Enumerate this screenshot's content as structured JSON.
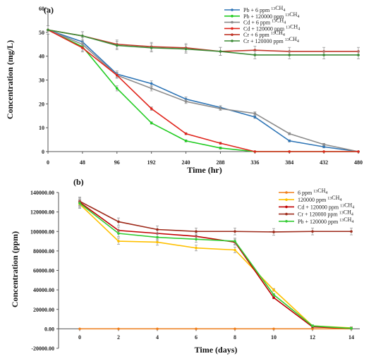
{
  "chart_data": [
    {
      "panel": "(a)",
      "type": "line",
      "xlabel": "Time (hr)",
      "ylabel": "Concentration (mg/L)",
      "x": [
        "0",
        "48",
        "96",
        "192",
        "240",
        "288",
        "336",
        "384",
        "432",
        "480"
      ],
      "yticks": [
        "0",
        "10",
        "20",
        "30",
        "40",
        "50",
        "60"
      ],
      "ylim": [
        0,
        60
      ],
      "grid": false,
      "legend_position": "top-right",
      "series": [
        {
          "name": "Pb + 6 ppm ¹³CH₄",
          "color": "#2e75b6",
          "values": [
            51,
            46,
            32.5,
            28.5,
            22,
            18.5,
            14.5,
            4.5,
            2,
            0
          ]
        },
        {
          "name": "Pb + 120000 ppm ¹³CH₄",
          "color": "#22cc22",
          "values": [
            51,
            44,
            26.5,
            12,
            4.5,
            1.5,
            0,
            0,
            0,
            0
          ]
        },
        {
          "name": "Cd + 6 ppm ¹³CH₄",
          "color": "#8c8c8c",
          "values": [
            51,
            45,
            32,
            26.5,
            21,
            18,
            16,
            7.5,
            3,
            0
          ]
        },
        {
          "name": "Cd + 120000 ppm ¹³CH₄",
          "color": "#e0241b",
          "values": [
            51,
            43.5,
            32,
            18,
            7.5,
            3.5,
            0,
            0,
            0,
            0
          ]
        },
        {
          "name": "Cr + 6 ppm ¹³CH₄",
          "color": "#c0392b",
          "values": [
            51,
            48.5,
            45,
            44,
            43.5,
            42,
            42.5,
            42,
            42,
            42
          ]
        },
        {
          "name": "Cr + 120000 ppm ¹³CH₄",
          "color": "#3d8b37",
          "values": [
            51,
            48.5,
            44.5,
            43.5,
            43,
            42,
            40.5,
            40.5,
            40.5,
            40.5
          ]
        }
      ]
    },
    {
      "panel": "(b)",
      "type": "line",
      "xlabel": "Time (days)",
      "ylabel": "Concentration (ppm)",
      "x": [
        "0",
        "2",
        "4",
        "6",
        "8",
        "10",
        "12",
        "14"
      ],
      "yticks": [
        "-20000.00",
        "0.00",
        "20000.00",
        "40000.00",
        "60000.00",
        "80000.00",
        "100000.00",
        "120000.00",
        "140000.00"
      ],
      "ylim": [
        -20000,
        140000
      ],
      "grid": false,
      "legend_position": "top-right",
      "series": [
        {
          "name": "6 ppm ¹³CH₄",
          "color": "#f07f1c",
          "values": [
            0,
            0,
            0,
            0,
            0,
            0,
            0,
            0
          ]
        },
        {
          "name": "120000 ppm ¹³CH₄",
          "color": "#ffc000",
          "values": [
            128000,
            90000,
            89000,
            83000,
            81000,
            40000,
            3000,
            1000
          ]
        },
        {
          "name": "Cd + 120000 ppm ¹³CH₄",
          "color": "#c00000",
          "values": [
            130000,
            101000,
            98000,
            95000,
            89000,
            32000,
            2000,
            500
          ]
        },
        {
          "name": "Cr + 120000 ppm ¹³CH₄",
          "color": "#9e2a1a",
          "values": [
            131000,
            110000,
            102000,
            100000,
            100000,
            99500,
            100000,
            100000
          ]
        },
        {
          "name": "Pb + 120000 ppm ¹³CH₄",
          "color": "#33cc33",
          "values": [
            129000,
            98000,
            94000,
            92000,
            90000,
            35000,
            3000,
            500
          ]
        }
      ]
    }
  ]
}
